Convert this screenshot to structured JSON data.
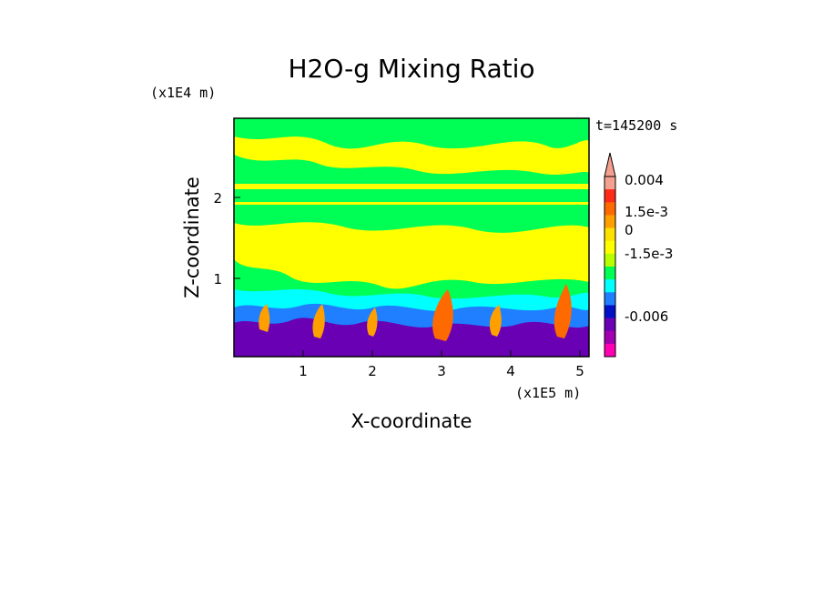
{
  "chart_data": {
    "type": "heatmap",
    "title": "H2O-g Mixing Ratio",
    "xlabel": "X-coordinate",
    "ylabel": "Z-coordinate",
    "x_scale_label": "(x1E5 m)",
    "y_scale_label": "(x1E4 m)",
    "time_label": "t=145200 s",
    "xlim": [
      0,
      5.15
    ],
    "ylim": [
      0,
      2.95
    ],
    "x_ticks": [
      1,
      2,
      3,
      4,
      5
    ],
    "y_ticks": [
      1,
      2
    ],
    "x_tick_labels": [
      "1",
      "2",
      "3",
      "4",
      "5"
    ],
    "y_tick_labels": [
      "1",
      "2"
    ],
    "colorbar": {
      "extend": "max",
      "levels": [
        "0.004",
        "1.5e-3",
        "0",
        "-1.5e-3",
        "-0.006"
      ],
      "colors": [
        "#f4a090",
        "#ff2a1a",
        "#ff6a00",
        "#ff9f00",
        "#ffe100",
        "#ffff00",
        "#b7ff00",
        "#00ff55",
        "#00ffff",
        "#1f7fff",
        "#0010c8",
        "#6a00b4",
        "#a000b0",
        "#ff00b4"
      ]
    },
    "fields": {
      "upper_layer": "mostly yellow/green (near 0)",
      "lower_layer": "blue/purple (negative) with orange plumes"
    }
  }
}
